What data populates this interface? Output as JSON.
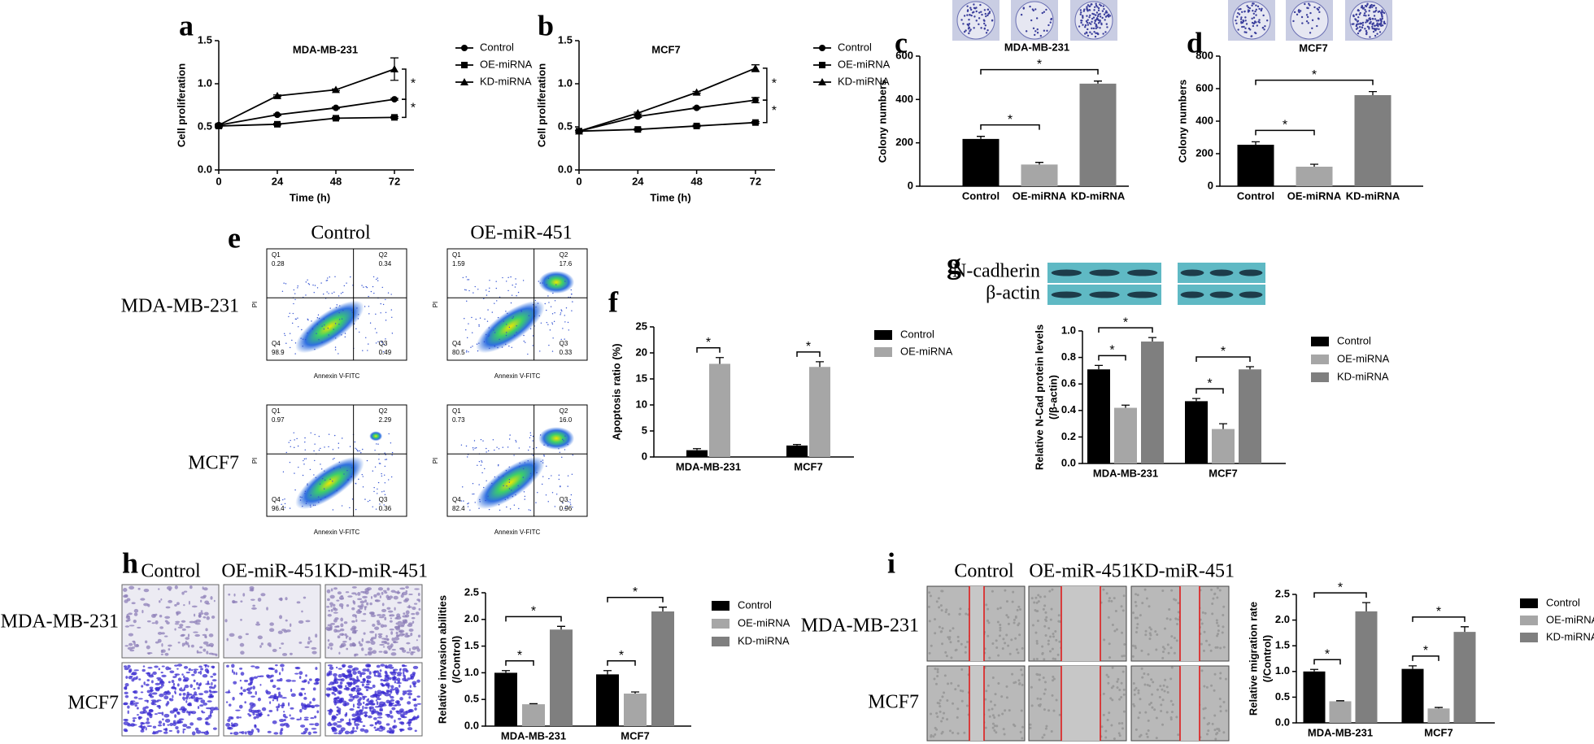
{
  "chart_data": [
    {
      "type": "line",
      "title": "MDA-MB-231",
      "x_label": "Time (h)",
      "y_label": "Cell proliferation",
      "x": [
        0,
        24,
        48,
        72
      ],
      "xlim": [
        0,
        80
      ],
      "xticks": [
        0,
        24,
        48,
        72
      ],
      "ylim": [
        0,
        1.5
      ],
      "yticks": [
        {
          "value": 0,
          "label": "0.0"
        },
        0.5,
        {
          "value": 1,
          "label": "1.0"
        },
        1.5
      ],
      "series": [
        {
          "name": "Control",
          "color": "#000000",
          "marker": "circle",
          "values": [
            0.52,
            0.64,
            0.72,
            0.82
          ],
          "errors": [
            0.01,
            0.01,
            0.01,
            0.01
          ]
        },
        {
          "name": "OE-miRNA",
          "color": "#000000",
          "marker": "square",
          "values": [
            0.51,
            0.53,
            0.6,
            0.61
          ],
          "errors": [
            0.01,
            0.01,
            0.01,
            0.01
          ]
        },
        {
          "name": "KD-miRNA",
          "color": "#000000",
          "marker": "triangle",
          "values": [
            0.52,
            0.86,
            0.93,
            1.17
          ],
          "errors": [
            0.01,
            0.01,
            0.01,
            0.13
          ]
        }
      ],
      "annotations": [
        "*",
        "*"
      ]
    },
    {
      "type": "line",
      "title": "MCF7",
      "x_label": "Time (h)",
      "y_label": "Cell proliferation",
      "x": [
        0,
        24,
        48,
        72
      ],
      "xlim": [
        0,
        80
      ],
      "xticks": [
        0,
        24,
        48,
        72
      ],
      "ylim": [
        0,
        1.5
      ],
      "yticks": [
        {
          "value": 0,
          "label": "0.0"
        },
        0.5,
        {
          "value": 1,
          "label": "1.0"
        },
        1.5
      ],
      "series": [
        {
          "name": "Control",
          "color": "#000000",
          "marker": "circle",
          "values": [
            0.45,
            0.62,
            0.72,
            0.81
          ],
          "errors": [
            0.01,
            0.01,
            0.01,
            0.03
          ]
        },
        {
          "name": "OE-miRNA",
          "color": "#000000",
          "marker": "square",
          "values": [
            0.45,
            0.47,
            0.51,
            0.55
          ],
          "errors": [
            0.01,
            0.01,
            0.01,
            0.01
          ]
        },
        {
          "name": "KD-miRNA",
          "color": "#000000",
          "marker": "triangle",
          "values": [
            0.45,
            0.66,
            0.9,
            1.18
          ],
          "errors": [
            0.01,
            0.01,
            0.01,
            0.04
          ]
        }
      ],
      "annotations": [
        "*",
        "*"
      ]
    },
    {
      "type": "bar",
      "title": "MDA-MB-231",
      "y_label": "Colony numbers",
      "categories": [
        "Control",
        "OE-miRNA",
        "KD-miRNA"
      ],
      "values": [
        218,
        100,
        473
      ],
      "errors": [
        12,
        10,
        12
      ],
      "colors": [
        "#000000",
        "#a6a6a6",
        "#7f7f7f"
      ],
      "ylim": [
        0,
        600
      ],
      "yticks": [
        0,
        200,
        400,
        600
      ],
      "annotations": [
        "*",
        "*"
      ]
    },
    {
      "type": "bar",
      "title": "MCF7",
      "y_label": "Colony numbers",
      "categories": [
        "Control",
        "OE-miRNA",
        "KD-miRNA"
      ],
      "values": [
        255,
        120,
        560
      ],
      "errors": [
        18,
        15,
        22
      ],
      "colors": [
        "#000000",
        "#a6a6a6",
        "#7f7f7f"
      ],
      "ylim": [
        0,
        800
      ],
      "yticks": [
        0,
        200,
        400,
        600,
        800
      ],
      "annotations": [
        "*",
        "*"
      ]
    },
    {
      "type": "grouped_bar",
      "y_label": "Apoptosis ratio (%)",
      "categories": [
        "MDA-MB-231",
        "MCF7"
      ],
      "ylim": [
        0,
        25
      ],
      "yticks": [
        0,
        5,
        10,
        15,
        20,
        25
      ],
      "series": [
        {
          "name": "Control",
          "color": "#000000",
          "values": [
            1.3,
            2.2
          ],
          "errors": [
            0.3,
            0.2
          ]
        },
        {
          "name": "OE-miRNA",
          "color": "#a6a6a6",
          "values": [
            17.9,
            17.3
          ],
          "errors": [
            1.2,
            1.0
          ]
        }
      ],
      "annotations": [
        "*",
        "*"
      ]
    },
    {
      "type": "grouped_bar",
      "y_label": [
        "Relative N-Cad protein levels",
        "(/β-actin)"
      ],
      "categories": [
        "MDA-MB-231",
        "MCF7"
      ],
      "ylim": [
        0,
        1
      ],
      "yticks": [
        {
          "value": 0,
          "label": "0.0"
        },
        0.2,
        0.4,
        0.6,
        0.8,
        {
          "value": 1,
          "label": "1.0"
        }
      ],
      "series": [
        {
          "name": "Control",
          "color": "#000000",
          "values": [
            0.71,
            0.47
          ],
          "errors": [
            0.03,
            0.02
          ]
        },
        {
          "name": "OE-miRNA",
          "color": "#a6a6a6",
          "values": [
            0.42,
            0.26
          ],
          "errors": [
            0.02,
            0.04
          ]
        },
        {
          "name": "KD-miRNA",
          "color": "#7f7f7f",
          "values": [
            0.92,
            0.71
          ],
          "errors": [
            0.03,
            0.02
          ]
        }
      ],
      "annotations": [
        "*",
        "*",
        "*",
        "*"
      ]
    },
    {
      "type": "grouped_bar",
      "y_label": [
        "Relative invasion abilities",
        "(/Control)"
      ],
      "categories": [
        "MDA-MB-231",
        "MCF7"
      ],
      "ylim": [
        0,
        2.5
      ],
      "yticks": [
        {
          "value": 0,
          "label": "0.0"
        },
        0.5,
        {
          "value": 1,
          "label": "1.0"
        },
        1.5,
        {
          "value": 2,
          "label": "2.0"
        },
        2.5
      ],
      "series": [
        {
          "name": "Control",
          "color": "#000000",
          "values": [
            1.0,
            0.97
          ],
          "errors": [
            0.04,
            0.07
          ]
        },
        {
          "name": "OE-miRNA",
          "color": "#a6a6a6",
          "values": [
            0.41,
            0.61
          ],
          "errors": [
            0.01,
            0.03
          ]
        },
        {
          "name": "KD-miRNA",
          "color": "#7f7f7f",
          "values": [
            1.81,
            2.15
          ],
          "errors": [
            0.06,
            0.08
          ]
        }
      ],
      "annotations": [
        "*",
        "*",
        "*",
        "*"
      ]
    },
    {
      "type": "grouped_bar",
      "y_label": [
        "Relative migration rate",
        "(/Control)"
      ],
      "categories": [
        "MDA-MB-231",
        "MCF7"
      ],
      "ylim": [
        0,
        2.5
      ],
      "yticks": [
        {
          "value": 0,
          "label": "0.0"
        },
        0.5,
        {
          "value": 1,
          "label": "1.0"
        },
        1.5,
        {
          "value": 2,
          "label": "2.0"
        },
        2.5
      ],
      "series": [
        {
          "name": "Control",
          "color": "#000000",
          "values": [
            1.0,
            1.05
          ],
          "errors": [
            0.04,
            0.06
          ]
        },
        {
          "name": "OE-miRNA",
          "color": "#a6a6a6",
          "values": [
            0.42,
            0.28
          ],
          "errors": [
            0.01,
            0.02
          ]
        },
        {
          "name": "KD-miRNA",
          "color": "#7f7f7f",
          "values": [
            2.17,
            1.77
          ],
          "errors": [
            0.17,
            0.1
          ]
        }
      ],
      "annotations": [
        "*",
        "*",
        "*",
        "*"
      ]
    }
  ],
  "panel_labels": [
    "a",
    "b",
    "c",
    "d",
    "e",
    "f",
    "g",
    "h",
    "i"
  ],
  "flow_cytometry": {
    "columns": [
      "Control",
      "OE-miR-451"
    ],
    "rows": [
      "MDA-MB-231",
      "MCF7"
    ],
    "x_label": "Annexin V-FITC",
    "y_label": "PI",
    "quadrant_names": [
      "Q1",
      "Q2",
      "Q3",
      "Q4"
    ],
    "plots": [
      {
        "Q1": "0.28",
        "Q2": "0.34",
        "Q3": "0.49",
        "Q4": "98.9"
      },
      {
        "Q1": "1.59",
        "Q2": "17.6",
        "Q3": "0.33",
        "Q4": "80.5"
      },
      {
        "Q1": "0.97",
        "Q2": "2.29",
        "Q3": "0.36",
        "Q4": "96.4"
      },
      {
        "Q1": "0.73",
        "Q2": "16.0",
        "Q3": "0.96",
        "Q4": "82.4"
      }
    ]
  },
  "western_blot": {
    "rows": [
      "N-cadherin",
      "β-actin"
    ]
  },
  "invasion_images": {
    "columns": [
      "Control",
      "OE-miR-451",
      "KD-miR-451"
    ],
    "rows": [
      "MDA-MB-231",
      "MCF7"
    ]
  },
  "migration_images": {
    "columns": [
      "Control",
      "OE-miR-451",
      "KD-miR-451"
    ],
    "rows": [
      "MDA-MB-231",
      "MCF7"
    ]
  }
}
